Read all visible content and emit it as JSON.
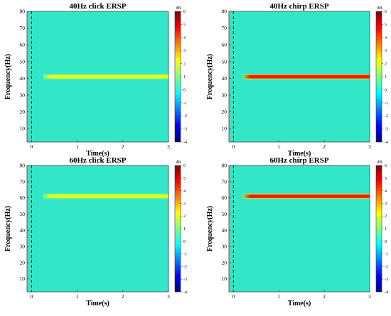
{
  "chart_data": [
    {
      "type": "heatmap",
      "title": "40Hz click ERSP",
      "xlabel": "Time(s)",
      "ylabel": "Frequency(Hz)",
      "xlim": [
        -0.1,
        3
      ],
      "ylim": [
        2,
        80
      ],
      "xticks": [
        0,
        1,
        2,
        3
      ],
      "yticks": [
        10,
        20,
        30,
        40,
        50,
        60,
        70,
        80
      ],
      "stim_onset": 0,
      "band": {
        "freq": 41,
        "t_start": 0.25,
        "t_end": 3,
        "peak_db": 2.0
      },
      "colorbar": {
        "label": "dB",
        "min": -4,
        "max": 6,
        "ticks": [
          6,
          5,
          4,
          3,
          2,
          1,
          0,
          -1,
          -2,
          -3,
          -4
        ]
      }
    },
    {
      "type": "heatmap",
      "title": "40Hz chirp ERSP",
      "xlabel": "Time(s)",
      "ylabel": "Frequency(Hz)",
      "xlim": [
        -0.1,
        3
      ],
      "ylim": [
        2,
        80
      ],
      "xticks": [
        0,
        1,
        2,
        3
      ],
      "yticks": [
        10,
        20,
        30,
        40,
        50,
        60,
        70,
        80
      ],
      "stim_onset": 0,
      "band": {
        "freq": 41,
        "t_start": 0.2,
        "t_end": 3,
        "peak_db": 4.5
      },
      "colorbar": {
        "label": "dB",
        "min": -4,
        "max": 6,
        "ticks": [
          6,
          5,
          4,
          3,
          2,
          1,
          0,
          -1,
          -2,
          -3,
          -4
        ]
      }
    },
    {
      "type": "heatmap",
      "title": "60Hz click ERSP",
      "xlabel": "Time(s)",
      "ylabel": "Frequency(Hz)",
      "xlim": [
        -0.1,
        3
      ],
      "ylim": [
        2,
        80
      ],
      "xticks": [
        0,
        1,
        2,
        3
      ],
      "yticks": [
        10,
        20,
        30,
        40,
        50,
        60,
        70,
        80
      ],
      "stim_onset": 0,
      "band": {
        "freq": 61,
        "t_start": 0.25,
        "t_end": 3,
        "peak_db": 2.0
      },
      "colorbar": {
        "label": "dB",
        "min": -4,
        "max": 6,
        "ticks": [
          6,
          5,
          4,
          3,
          2,
          1,
          0,
          -1,
          -2,
          -3,
          -4
        ]
      }
    },
    {
      "type": "heatmap",
      "title": "60Hz chirp ERSP",
      "xlabel": "Time(s)",
      "ylabel": "Frequency(Hz)",
      "xlim": [
        -0.1,
        3
      ],
      "ylim": [
        2,
        80
      ],
      "xticks": [
        0,
        1,
        2,
        3
      ],
      "yticks": [
        10,
        20,
        30,
        40,
        50,
        60,
        70,
        80
      ],
      "stim_onset": 0,
      "band": {
        "freq": 61,
        "t_start": 0.2,
        "t_end": 3,
        "peak_db": 4.5
      },
      "colorbar": {
        "label": "dB",
        "min": -4,
        "max": 6,
        "ticks": [
          6,
          5,
          4,
          3,
          2,
          1,
          0,
          -1,
          -2,
          -3,
          -4
        ]
      }
    }
  ],
  "colors": {
    "background": "#33e6c8",
    "onset_line": "#222222",
    "jet": [
      "#00007f",
      "#0000ff",
      "#007fff",
      "#00ffff",
      "#7fff7f",
      "#ffff00",
      "#ff7f00",
      "#ff0000",
      "#7f0000"
    ]
  }
}
